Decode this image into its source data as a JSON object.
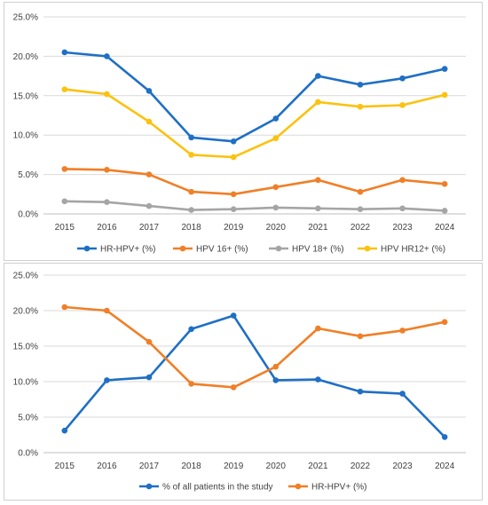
{
  "chart_data": [
    {
      "type": "line",
      "x": [
        "2015",
        "2016",
        "2017",
        "2018",
        "2019",
        "2020",
        "2021",
        "2022",
        "2023",
        "2024"
      ],
      "ylim": [
        0,
        25
      ],
      "yticks": [
        "0.0%",
        "5.0%",
        "10.0%",
        "15.0%",
        "20.0%",
        "25.0%"
      ],
      "grid": true,
      "legend_position": "bottom",
      "series": [
        {
          "name": "HR-HPV+ (%)",
          "color": "#1f6fc5",
          "values": [
            20.5,
            20.0,
            15.6,
            9.7,
            9.2,
            12.1,
            17.5,
            16.4,
            17.2,
            18.4
          ]
        },
        {
          "name": "HPV 16+ (%)",
          "color": "#f07f27",
          "values": [
            5.7,
            5.6,
            5.0,
            2.8,
            2.5,
            3.4,
            4.3,
            2.8,
            4.3,
            3.8
          ]
        },
        {
          "name": "HPV 18+ (%)",
          "color": "#a5a5a5",
          "values": [
            1.6,
            1.5,
            1.0,
            0.5,
            0.6,
            0.8,
            0.7,
            0.6,
            0.7,
            0.4
          ]
        },
        {
          "name": "HPV HR12+ (%)",
          "color": "#fbc20f",
          "values": [
            15.8,
            15.2,
            11.7,
            7.5,
            7.2,
            9.6,
            14.2,
            13.6,
            13.8,
            15.1
          ]
        }
      ]
    },
    {
      "type": "line",
      "x": [
        "2015",
        "2016",
        "2017",
        "2018",
        "2019",
        "2020",
        "2021",
        "2022",
        "2023",
        "2024"
      ],
      "ylim": [
        0,
        25
      ],
      "yticks": [
        "0.0%",
        "5.0%",
        "10.0%",
        "15.0%",
        "20.0%",
        "25.0%"
      ],
      "grid": true,
      "legend_position": "bottom",
      "series": [
        {
          "name": "% of all patients in the study",
          "color": "#1f6fc5",
          "values": [
            3.1,
            10.2,
            10.6,
            17.4,
            19.3,
            10.2,
            10.3,
            8.6,
            8.3,
            2.2
          ]
        },
        {
          "name": "HR-HPV+ (%)",
          "color": "#f07f27",
          "values": [
            20.5,
            20.0,
            15.6,
            9.7,
            9.2,
            12.1,
            17.5,
            16.4,
            17.2,
            18.4
          ]
        }
      ]
    }
  ]
}
